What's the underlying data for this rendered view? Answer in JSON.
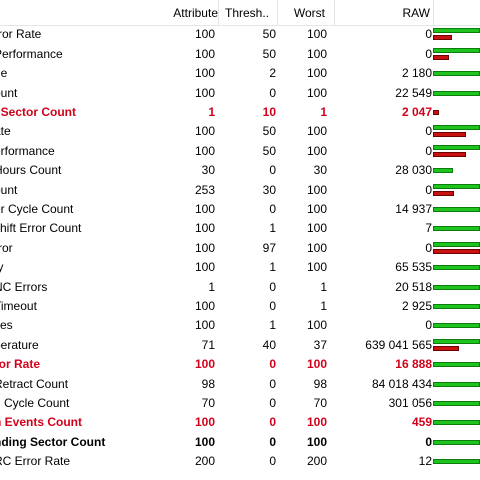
{
  "headers": {
    "attribute": "Attribute",
    "threshold": "Thresh...",
    "worst": "Worst",
    "raw": "RAW"
  },
  "rows": [
    {
      "name": "rror Rate",
      "attr": "100",
      "thr": "50",
      "wst": "100",
      "raw": "0",
      "status": "normal",
      "g": 1,
      "r": 0.4
    },
    {
      "name": "Performance",
      "attr": "100",
      "thr": "50",
      "wst": "100",
      "raw": "0",
      "status": "normal",
      "g": 1,
      "r": 0.35
    },
    {
      "name": "ne",
      "attr": "100",
      "thr": "2",
      "wst": "100",
      "raw": "2 180",
      "status": "normal",
      "g": 1,
      "r": null
    },
    {
      "name": "ount",
      "attr": "100",
      "thr": "0",
      "wst": "100",
      "raw": "22 549",
      "status": "normal",
      "g": 1,
      "r": null
    },
    {
      "name": "l Sector Count",
      "attr": "1",
      "thr": "10",
      "wst": "1",
      "raw": "2 047",
      "status": "warn",
      "g": null,
      "r": 0.12
    },
    {
      "name": "ate",
      "attr": "100",
      "thr": "50",
      "wst": "100",
      "raw": "0",
      "status": "normal",
      "g": 1,
      "r": 0.7
    },
    {
      "name": "erformance",
      "attr": "100",
      "thr": "50",
      "wst": "100",
      "raw": "0",
      "status": "normal",
      "g": 1,
      "r": 0.7
    },
    {
      "name": "Hours Count",
      "attr": "30",
      "thr": "0",
      "wst": "30",
      "raw": "28 030",
      "status": "normal",
      "g": 0.42,
      "r": null
    },
    {
      "name": "ount",
      "attr": "253",
      "thr": "30",
      "wst": "100",
      "raw": "0",
      "status": "normal",
      "g": 1,
      "r": 0.45
    },
    {
      "name": "er Cycle Count",
      "attr": "100",
      "thr": "0",
      "wst": "100",
      "raw": "14 937",
      "status": "normal",
      "g": 1,
      "r": null
    },
    {
      "name": "shift Error Count",
      "attr": "100",
      "thr": "1",
      "wst": "100",
      "raw": "7",
      "status": "normal",
      "g": 1,
      "r": null
    },
    {
      "name": "rror",
      "attr": "100",
      "thr": "97",
      "wst": "100",
      "raw": "0",
      "status": "normal",
      "g": 1,
      "r": 1
    },
    {
      "name": "ty",
      "attr": "100",
      "thr": "1",
      "wst": "100",
      "raw": "65 535",
      "status": "normal",
      "g": 1,
      "r": null
    },
    {
      "name": "NC Errors",
      "attr": "1",
      "thr": "0",
      "wst": "1",
      "raw": "20 518",
      "status": "normal",
      "g": 1,
      "r": null
    },
    {
      "name": "Timeout",
      "attr": "100",
      "thr": "0",
      "wst": "1",
      "raw": "2 925",
      "status": "normal",
      "g": 1,
      "r": null
    },
    {
      "name": "ites",
      "attr": "100",
      "thr": "1",
      "wst": "100",
      "raw": "0",
      "status": "normal",
      "g": 1,
      "r": null
    },
    {
      "name": "perature",
      "attr": "71",
      "thr": "40",
      "wst": "37",
      "raw": "639 041 565",
      "status": "normal",
      "g": 1,
      "r": 0.55
    },
    {
      "name": "ror Rate",
      "attr": "100",
      "thr": "0",
      "wst": "100",
      "raw": "16 888",
      "status": "warn",
      "g": 1,
      "r": null
    },
    {
      "name": "Retract Count",
      "attr": "98",
      "thr": "0",
      "wst": "98",
      "raw": "84 018 434",
      "status": "normal",
      "g": 1,
      "r": null
    },
    {
      "name": "d Cycle Count",
      "attr": "70",
      "thr": "0",
      "wst": "70",
      "raw": "301 056",
      "status": "normal",
      "g": 1,
      "r": null
    },
    {
      "name": "n Events Count",
      "attr": "100",
      "thr": "0",
      "wst": "100",
      "raw": "459",
      "status": "warn",
      "g": 1,
      "r": null
    },
    {
      "name": "nding Sector Count",
      "attr": "100",
      "thr": "0",
      "wst": "100",
      "raw": "0",
      "status": "bold",
      "g": 1,
      "r": null
    },
    {
      "name": "RC Error Rate",
      "attr": "200",
      "thr": "0",
      "wst": "200",
      "raw": "12",
      "status": "normal",
      "g": 1,
      "r": null
    }
  ]
}
